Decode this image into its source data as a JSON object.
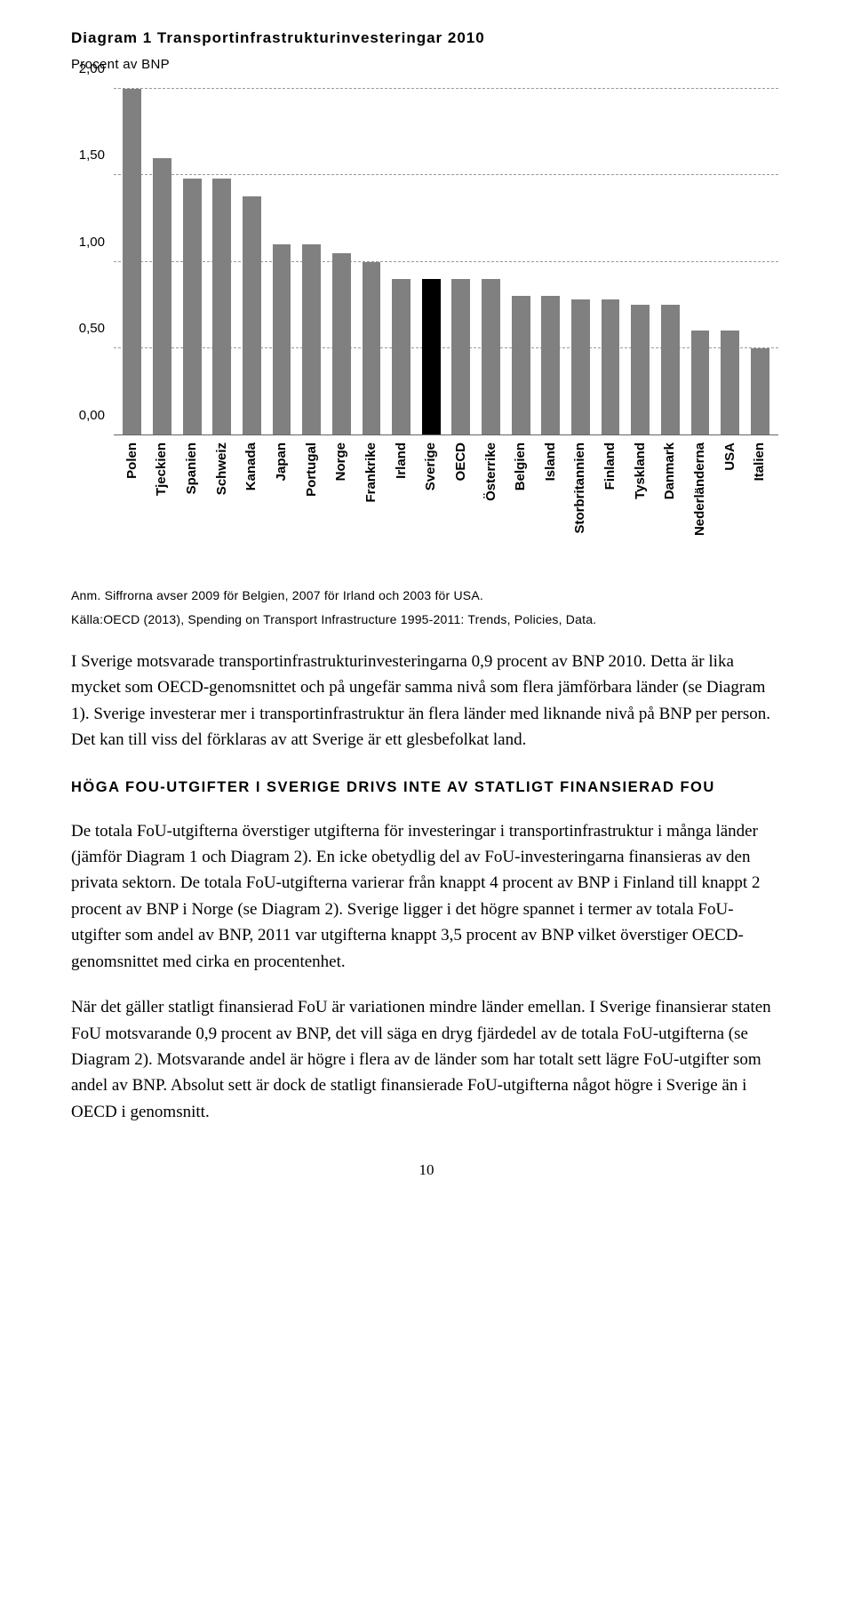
{
  "diagram": {
    "title": "Diagram 1 Transportinfrastrukturinvesteringar 2010",
    "subtitle": "Procent av BNP",
    "type": "bar",
    "categories": [
      "Polen",
      "Tjeckien",
      "Spanien",
      "Schweiz",
      "Kanada",
      "Japan",
      "Portugal",
      "Norge",
      "Frankrike",
      "Irland",
      "Sverige",
      "OECD",
      "Österrike",
      "Belgien",
      "Island",
      "Storbritannien",
      "Finland",
      "Tyskland",
      "Danmark",
      "Nederländerna",
      "USA",
      "Italien"
    ],
    "values": [
      2.0,
      1.6,
      1.48,
      1.48,
      1.38,
      1.1,
      1.1,
      1.05,
      1.0,
      0.9,
      0.9,
      0.9,
      0.9,
      0.8,
      0.8,
      0.78,
      0.78,
      0.75,
      0.75,
      0.6,
      0.6,
      0.5
    ],
    "highlight_index": 10,
    "bar_color": "#808080",
    "highlight_color": "#000000",
    "ylim": [
      0,
      2.0
    ],
    "yticks": [
      0.0,
      0.5,
      1.0,
      1.5,
      2.0
    ],
    "ytick_labels": [
      "0,00",
      "0,50",
      "1,00",
      "1,50",
      "2,00"
    ],
    "grid_color": "#999999",
    "axis_color": "#666666",
    "note1": "Anm. Siffrorna avser 2009 för Belgien, 2007 för Irland och 2003 för USA.",
    "note2": "Källa:OECD (2013), Spending on Transport Infrastructure 1995-2011: Trends, Policies, Data."
  },
  "para1": "I Sverige motsvarade transportinfrastrukturinvesteringarna 0,9 procent av BNP 2010. Detta är lika mycket som OECD-genomsnittet och på ungefär samma nivå som flera jämförbara länder (se Diagram 1). Sverige investerar mer i transportinfrastruktur än flera länder med liknande nivå på BNP per person. Det kan till viss del förklaras av att Sverige är ett glesbefolkat land.",
  "section_heading": "HÖGA FOU-UTGIFTER I SVERIGE DRIVS INTE AV STATLIGT FINANSIERAD FOU",
  "para2": "De totala FoU-utgifterna överstiger utgifterna för investeringar i transportinfrastruktur i många länder (jämför Diagram 1 och Diagram 2). En icke obetydlig del av FoU-investeringarna finansieras av den privata sektorn. De totala FoU-utgifterna varierar från knappt 4 procent av BNP i Finland till knappt 2 procent av BNP i Norge (se Diagram 2). Sverige ligger i det högre spannet i termer av totala FoU-utgifter som andel av BNP, 2011 var utgifterna knappt 3,5 procent av BNP vilket överstiger OECD-genomsnittet med cirka en procentenhet.",
  "para3": "När det gäller statligt finansierad FoU är variationen mindre länder emellan. I Sverige finansierar staten FoU motsvarande 0,9 procent av BNP, det vill säga en dryg fjärdedel av de totala FoU-utgifterna (se Diagram 2). Motsvarande andel är högre i flera av de länder som har totalt sett lägre FoU-utgifter som andel av BNP. Absolut sett är dock de statligt finansierade FoU-utgifterna något högre i Sverige än i OECD i genomsnitt.",
  "page_number": "10"
}
